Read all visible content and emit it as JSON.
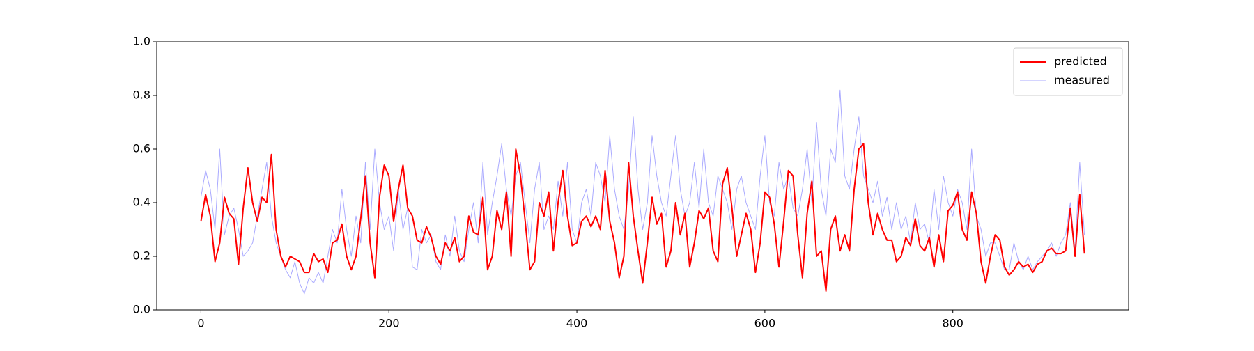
{
  "chart_data": {
    "type": "line",
    "x": [
      0,
      5,
      10,
      15,
      20,
      25,
      30,
      35,
      40,
      45,
      50,
      55,
      60,
      65,
      70,
      75,
      80,
      85,
      90,
      95,
      100,
      105,
      110,
      115,
      120,
      125,
      130,
      135,
      140,
      145,
      150,
      155,
      160,
      165,
      170,
      175,
      180,
      185,
      190,
      195,
      200,
      205,
      210,
      215,
      220,
      225,
      230,
      235,
      240,
      245,
      250,
      255,
      260,
      265,
      270,
      275,
      280,
      285,
      290,
      295,
      300,
      305,
      310,
      315,
      320,
      325,
      330,
      335,
      340,
      345,
      350,
      355,
      360,
      365,
      370,
      375,
      380,
      385,
      390,
      395,
      400,
      405,
      410,
      415,
      420,
      425,
      430,
      435,
      440,
      445,
      450,
      455,
      460,
      465,
      470,
      475,
      480,
      485,
      490,
      495,
      500,
      505,
      510,
      515,
      520,
      525,
      530,
      535,
      540,
      545,
      550,
      555,
      560,
      565,
      570,
      575,
      580,
      585,
      590,
      595,
      600,
      605,
      610,
      615,
      620,
      625,
      630,
      635,
      640,
      645,
      650,
      655,
      660,
      665,
      670,
      675,
      680,
      685,
      690,
      695,
      700,
      705,
      710,
      715,
      720,
      725,
      730,
      735,
      740,
      745,
      750,
      755,
      760,
      765,
      770,
      775,
      780,
      785,
      790,
      795,
      800,
      805,
      810,
      815,
      820,
      825,
      830,
      835,
      840,
      845,
      850,
      855,
      860,
      865,
      870,
      875,
      880,
      885,
      890,
      895,
      900,
      905,
      910,
      915,
      920,
      925,
      930,
      935,
      940
    ],
    "series": [
      {
        "name": "predicted",
        "color": "#ff0000",
        "width": 2,
        "values": [
          0.33,
          0.43,
          0.35,
          0.18,
          0.25,
          0.42,
          0.36,
          0.34,
          0.17,
          0.38,
          0.53,
          0.4,
          0.33,
          0.42,
          0.4,
          0.58,
          0.3,
          0.2,
          0.16,
          0.2,
          0.19,
          0.18,
          0.14,
          0.14,
          0.21,
          0.18,
          0.19,
          0.14,
          0.25,
          0.26,
          0.32,
          0.2,
          0.15,
          0.2,
          0.34,
          0.5,
          0.25,
          0.12,
          0.42,
          0.54,
          0.5,
          0.33,
          0.45,
          0.54,
          0.38,
          0.35,
          0.26,
          0.25,
          0.31,
          0.27,
          0.2,
          0.17,
          0.25,
          0.22,
          0.27,
          0.18,
          0.2,
          0.35,
          0.29,
          0.28,
          0.42,
          0.15,
          0.2,
          0.37,
          0.3,
          0.44,
          0.2,
          0.6,
          0.5,
          0.33,
          0.15,
          0.18,
          0.4,
          0.35,
          0.44,
          0.22,
          0.4,
          0.52,
          0.35,
          0.24,
          0.25,
          0.33,
          0.35,
          0.31,
          0.35,
          0.3,
          0.52,
          0.33,
          0.25,
          0.12,
          0.2,
          0.55,
          0.35,
          0.22,
          0.1,
          0.25,
          0.42,
          0.32,
          0.36,
          0.16,
          0.22,
          0.4,
          0.28,
          0.36,
          0.16,
          0.25,
          0.37,
          0.34,
          0.38,
          0.22,
          0.18,
          0.47,
          0.53,
          0.38,
          0.2,
          0.28,
          0.36,
          0.3,
          0.14,
          0.25,
          0.44,
          0.42,
          0.32,
          0.16,
          0.33,
          0.52,
          0.5,
          0.28,
          0.12,
          0.36,
          0.48,
          0.2,
          0.22,
          0.07,
          0.3,
          0.35,
          0.22,
          0.28,
          0.22,
          0.45,
          0.6,
          0.62,
          0.4,
          0.28,
          0.36,
          0.3,
          0.26,
          0.26,
          0.18,
          0.2,
          0.27,
          0.24,
          0.34,
          0.24,
          0.22,
          0.27,
          0.16,
          0.28,
          0.18,
          0.37,
          0.39,
          0.44,
          0.3,
          0.26,
          0.44,
          0.36,
          0.18,
          0.1,
          0.2,
          0.28,
          0.26,
          0.16,
          0.13,
          0.15,
          0.18,
          0.16,
          0.17,
          0.14,
          0.17,
          0.18,
          0.22,
          0.23,
          0.21,
          0.21,
          0.22,
          0.38,
          0.2,
          0.43,
          0.21
        ]
      },
      {
        "name": "measured",
        "color": "#aaaaff",
        "width": 1,
        "values": [
          0.42,
          0.52,
          0.45,
          0.3,
          0.6,
          0.28,
          0.35,
          0.38,
          0.3,
          0.2,
          0.22,
          0.25,
          0.35,
          0.45,
          0.55,
          0.35,
          0.25,
          0.2,
          0.15,
          0.12,
          0.18,
          0.1,
          0.06,
          0.12,
          0.1,
          0.14,
          0.1,
          0.2,
          0.3,
          0.25,
          0.45,
          0.3,
          0.2,
          0.35,
          0.25,
          0.55,
          0.3,
          0.6,
          0.4,
          0.3,
          0.35,
          0.22,
          0.45,
          0.3,
          0.38,
          0.16,
          0.15,
          0.3,
          0.25,
          0.28,
          0.18,
          0.15,
          0.28,
          0.2,
          0.35,
          0.22,
          0.18,
          0.3,
          0.4,
          0.25,
          0.55,
          0.28,
          0.4,
          0.5,
          0.62,
          0.45,
          0.35,
          0.5,
          0.55,
          0.4,
          0.25,
          0.45,
          0.55,
          0.3,
          0.35,
          0.3,
          0.48,
          0.35,
          0.55,
          0.3,
          0.25,
          0.4,
          0.45,
          0.35,
          0.55,
          0.5,
          0.4,
          0.65,
          0.45,
          0.35,
          0.3,
          0.45,
          0.72,
          0.45,
          0.3,
          0.4,
          0.65,
          0.5,
          0.4,
          0.35,
          0.5,
          0.65,
          0.45,
          0.35,
          0.4,
          0.55,
          0.38,
          0.6,
          0.4,
          0.35,
          0.5,
          0.45,
          0.4,
          0.3,
          0.45,
          0.5,
          0.4,
          0.35,
          0.3,
          0.5,
          0.65,
          0.4,
          0.35,
          0.55,
          0.45,
          0.5,
          0.38,
          0.35,
          0.45,
          0.6,
          0.4,
          0.7,
          0.45,
          0.35,
          0.6,
          0.55,
          0.82,
          0.5,
          0.45,
          0.6,
          0.72,
          0.5,
          0.45,
          0.4,
          0.48,
          0.35,
          0.42,
          0.3,
          0.4,
          0.3,
          0.35,
          0.25,
          0.4,
          0.3,
          0.32,
          0.25,
          0.45,
          0.3,
          0.5,
          0.4,
          0.35,
          0.45,
          0.4,
          0.3,
          0.6,
          0.35,
          0.3,
          0.2,
          0.25,
          0.25,
          0.2,
          0.15,
          0.15,
          0.25,
          0.18,
          0.15,
          0.2,
          0.15,
          0.18,
          0.2,
          0.22,
          0.25,
          0.2,
          0.25,
          0.28,
          0.4,
          0.22,
          0.55,
          0.28
        ]
      }
    ],
    "xlim": [
      -47,
      987
    ],
    "ylim": [
      0,
      1
    ],
    "xticks": [
      0,
      200,
      400,
      600,
      800
    ],
    "yticks": [
      {
        "value": 0,
        "label": "0.0"
      },
      0.2,
      0.4,
      0.6,
      0.8,
      {
        "value": 1,
        "label": "1.0"
      }
    ],
    "legend": "upper right",
    "grid": false
  }
}
